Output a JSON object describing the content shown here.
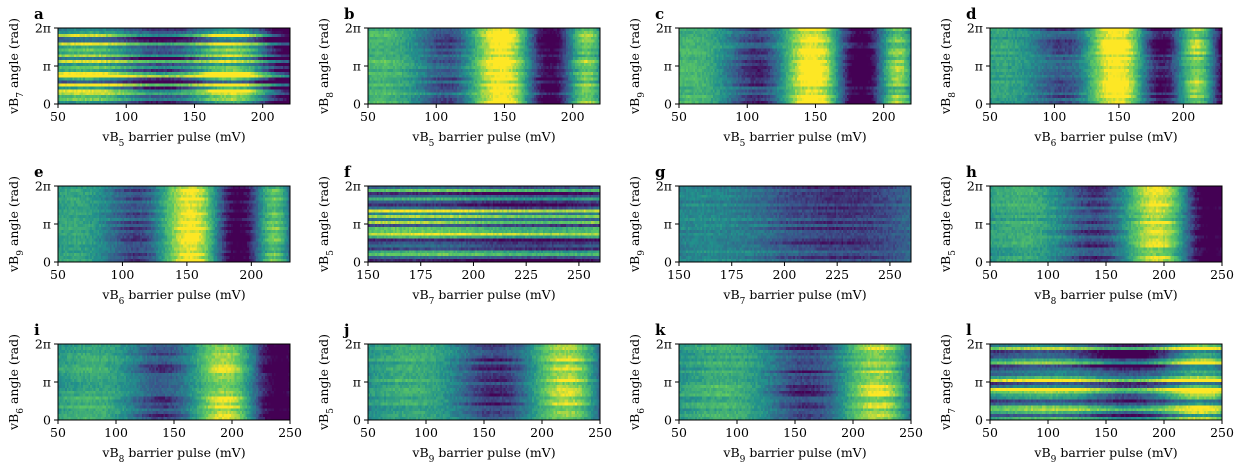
{
  "figure": {
    "layout": "3 rows x 4 columns of heatmap panels"
  },
  "colors": {
    "colormap": [
      "#440154",
      "#3b528b",
      "#21918c",
      "#5ec962",
      "#fde725"
    ],
    "axis": "#000000"
  },
  "chart_data": [
    {
      "id": "a",
      "type": "heatmap",
      "title": "a",
      "xlabel_pre": "vB",
      "xlabel_sub": "5",
      "xlabel_post": " barrier pulse (mV)",
      "ylabel_pre": "vB",
      "ylabel_sub": "7",
      "ylabel_post": " angle (rad)",
      "xlim": [
        50,
        220
      ],
      "xticks": [
        50,
        100,
        150,
        200
      ],
      "xtick_labels": [
        "50",
        "100",
        "150",
        "200"
      ],
      "ylim": [
        0,
        6.2832
      ],
      "yticks": [
        0,
        3.1416,
        6.2832
      ],
      "ytick_labels": [
        "0",
        "π",
        "2π"
      ],
      "pattern": {
        "f0": 0.0035,
        "alpha": 1.8,
        "x0": 105,
        "sigma": 45,
        "bg": 0.3,
        "contrast": 0.4,
        "row_contrast": 0.45,
        "rows": 26,
        "cols": 130,
        "seed": 11
      }
    },
    {
      "id": "b",
      "type": "heatmap",
      "title": "b",
      "xlabel_pre": "vB",
      "xlabel_sub": "5",
      "xlabel_post": " barrier pulse (mV)",
      "ylabel_pre": "vB",
      "ylabel_sub": "8",
      "ylabel_post": " angle (rad)",
      "xlim": [
        50,
        220
      ],
      "xticks": [
        50,
        100,
        150,
        200
      ],
      "xtick_labels": [
        "50",
        "100",
        "150",
        "200"
      ],
      "ylim": [
        0,
        6.2832
      ],
      "yticks": [
        0,
        3.1416,
        6.2832
      ],
      "ytick_labels": [
        "0",
        "π",
        "2π"
      ],
      "pattern": {
        "f0": 0.0045,
        "alpha": 2.0,
        "x0": 110,
        "sigma": 55,
        "bg": 0.25,
        "contrast": 0.45,
        "row_contrast": 0.06,
        "rows": 26,
        "cols": 130,
        "seed": 23
      }
    },
    {
      "id": "c",
      "type": "heatmap",
      "title": "c",
      "xlabel_pre": "vB",
      "xlabel_sub": "5",
      "xlabel_post": " barrier pulse (mV)",
      "ylabel_pre": "vB",
      "ylabel_sub": "9",
      "ylabel_post": " angle (rad)",
      "xlim": [
        50,
        220
      ],
      "xticks": [
        50,
        100,
        150,
        200
      ],
      "xtick_labels": [
        "50",
        "100",
        "150",
        "200"
      ],
      "ylim": [
        0,
        6.2832
      ],
      "yticks": [
        0,
        3.1416,
        6.2832
      ],
      "ytick_labels": [
        "0",
        "π",
        "2π"
      ],
      "pattern": {
        "f0": 0.0045,
        "alpha": 2.0,
        "x0": 108,
        "sigma": 55,
        "bg": 0.22,
        "contrast": 0.48,
        "row_contrast": 0.03,
        "rows": 26,
        "cols": 130,
        "seed": 37
      }
    },
    {
      "id": "d",
      "type": "heatmap",
      "title": "d",
      "xlabel_pre": "vB",
      "xlabel_sub": "6",
      "xlabel_post": " barrier pulse (mV)",
      "ylabel_pre": "vB",
      "ylabel_sub": "8",
      "ylabel_post": " angle (rad)",
      "xlim": [
        50,
        230
      ],
      "xticks": [
        50,
        100,
        150,
        200
      ],
      "xtick_labels": [
        "50",
        "100",
        "150",
        "200"
      ],
      "ylim": [
        0,
        6.2832
      ],
      "yticks": [
        0,
        3.1416,
        6.2832
      ],
      "ytick_labels": [
        "0",
        "π",
        "2π"
      ],
      "pattern": {
        "f0": 0.0045,
        "alpha": 2.0,
        "x0": 125,
        "sigma": 60,
        "bg": 0.2,
        "contrast": 0.45,
        "row_contrast": 0.04,
        "rows": 26,
        "cols": 130,
        "seed": 41
      }
    },
    {
      "id": "e",
      "type": "heatmap",
      "title": "e",
      "xlabel_pre": "vB",
      "xlabel_sub": "6",
      "xlabel_post": " barrier pulse (mV)",
      "ylabel_pre": "vB",
      "ylabel_sub": "9",
      "ylabel_post": " angle (rad)",
      "xlim": [
        50,
        230
      ],
      "xticks": [
        50,
        100,
        150,
        200
      ],
      "xtick_labels": [
        "50",
        "100",
        "150",
        "200"
      ],
      "ylim": [
        0,
        6.2832
      ],
      "yticks": [
        0,
        3.1416,
        6.2832
      ],
      "ytick_labels": [
        "0",
        "π",
        "2π"
      ],
      "pattern": {
        "f0": 0.0042,
        "alpha": 2.0,
        "x0": 118,
        "sigma": 55,
        "bg": 0.2,
        "contrast": 0.48,
        "row_contrast": 0.03,
        "rows": 26,
        "cols": 130,
        "seed": 53
      }
    },
    {
      "id": "f",
      "type": "heatmap",
      "title": "f",
      "xlabel_pre": "vB",
      "xlabel_sub": "7",
      "xlabel_post": " barrier pulse (mV)",
      "ylabel_pre": "vB",
      "ylabel_sub": "5",
      "ylabel_post": " angle (rad)",
      "xlim": [
        150,
        260
      ],
      "xticks": [
        150,
        175,
        200,
        225,
        250
      ],
      "xtick_labels": [
        "150",
        "175",
        "200",
        "225",
        "250"
      ],
      "ylim": [
        0,
        6.2832
      ],
      "yticks": [
        0,
        3.1416,
        6.2832
      ],
      "ytick_labels": [
        "0",
        "π",
        "2π"
      ],
      "pattern": {
        "f0": 0.0011,
        "alpha": 2.0,
        "x0": 205,
        "sigma": 40,
        "bg": 0.35,
        "contrast": 0.35,
        "row_contrast": 0.45,
        "rows": 26,
        "cols": 130,
        "seed": 67
      }
    },
    {
      "id": "g",
      "type": "heatmap",
      "title": "g",
      "xlabel_pre": "vB",
      "xlabel_sub": "7",
      "xlabel_post": " barrier pulse (mV)",
      "ylabel_pre": "vB",
      "ylabel_sub": "9",
      "ylabel_post": " angle (rad)",
      "xlim": [
        150,
        260
      ],
      "xticks": [
        150,
        175,
        200,
        225,
        250
      ],
      "xtick_labels": [
        "150",
        "175",
        "200",
        "225",
        "250"
      ],
      "ylim": [
        0,
        6.2832
      ],
      "yticks": [
        0,
        3.1416,
        6.2832
      ],
      "ytick_labels": [
        "0",
        "π",
        "2π"
      ],
      "pattern": {
        "f0": 0.0011,
        "alpha": 2.0,
        "x0": 198,
        "sigma": 40,
        "bg": 0.22,
        "contrast": 0.45,
        "row_contrast": 0.05,
        "rows": 26,
        "cols": 130,
        "seed": 71
      }
    },
    {
      "id": "h",
      "type": "heatmap",
      "title": "h",
      "xlabel_pre": "vB",
      "xlabel_sub": "8",
      "xlabel_post": " barrier pulse (mV)",
      "ylabel_pre": "vB",
      "ylabel_sub": "5",
      "ylabel_post": " angle (rad)",
      "xlim": [
        50,
        250
      ],
      "xticks": [
        50,
        100,
        150,
        200,
        250
      ],
      "xtick_labels": [
        "50",
        "100",
        "150",
        "200",
        "250"
      ],
      "ylim": [
        0,
        6.2832
      ],
      "yticks": [
        0,
        3.1416,
        6.2832
      ],
      "ytick_labels": [
        "0",
        "π",
        "2π"
      ],
      "pattern": {
        "f0": 0.0026,
        "alpha": 2.0,
        "x0": 138,
        "sigma": 60,
        "bg": 0.2,
        "contrast": 0.45,
        "row_contrast": 0.04,
        "rows": 26,
        "cols": 130,
        "seed": 83
      }
    },
    {
      "id": "i",
      "type": "heatmap",
      "title": "i",
      "xlabel_pre": "vB",
      "xlabel_sub": "8",
      "xlabel_post": " barrier pulse (mV)",
      "ylabel_pre": "vB",
      "ylabel_sub": "6",
      "ylabel_post": " angle (rad)",
      "xlim": [
        50,
        250
      ],
      "xticks": [
        50,
        100,
        150,
        200,
        250
      ],
      "xtick_labels": [
        "50",
        "100",
        "150",
        "200",
        "250"
      ],
      "ylim": [
        0,
        6.2832
      ],
      "yticks": [
        0,
        3.1416,
        6.2832
      ],
      "ytick_labels": [
        "0",
        "π",
        "2π"
      ],
      "pattern": {
        "f0": 0.0026,
        "alpha": 2.0,
        "x0": 135,
        "sigma": 60,
        "bg": 0.2,
        "contrast": 0.45,
        "row_contrast": 0.04,
        "rows": 26,
        "cols": 130,
        "seed": 97
      }
    },
    {
      "id": "j",
      "type": "heatmap",
      "title": "j",
      "xlabel_pre": "vB",
      "xlabel_sub": "9",
      "xlabel_post": " barrier pulse (mV)",
      "ylabel_pre": "vB",
      "ylabel_sub": "5",
      "ylabel_post": " angle (rad)",
      "xlim": [
        50,
        250
      ],
      "xticks": [
        50,
        100,
        150,
        200,
        250
      ],
      "xtick_labels": [
        "50",
        "100",
        "150",
        "200",
        "250"
      ],
      "ylim": [
        0,
        6.2832
      ],
      "yticks": [
        0,
        3.1416,
        6.2832
      ],
      "ytick_labels": [
        "0",
        "π",
        "2π"
      ],
      "pattern": {
        "f0": 0.002,
        "alpha": 2.0,
        "x0": 152,
        "sigma": 65,
        "bg": 0.18,
        "contrast": 0.48,
        "row_contrast": 0.03,
        "rows": 26,
        "cols": 130,
        "seed": 101
      }
    },
    {
      "id": "k",
      "type": "heatmap",
      "title": "k",
      "xlabel_pre": "vB",
      "xlabel_sub": "9",
      "xlabel_post": " barrier pulse (mV)",
      "ylabel_pre": "vB",
      "ylabel_sub": "6",
      "ylabel_post": " angle (rad)",
      "xlim": [
        50,
        250
      ],
      "xticks": [
        50,
        100,
        150,
        200,
        250
      ],
      "xtick_labels": [
        "50",
        "100",
        "150",
        "200",
        "250"
      ],
      "ylim": [
        0,
        6.2832
      ],
      "yticks": [
        0,
        3.1416,
        6.2832
      ],
      "ytick_labels": [
        "0",
        "π",
        "2π"
      ],
      "pattern": {
        "f0": 0.002,
        "alpha": 2.0,
        "x0": 150,
        "sigma": 65,
        "bg": 0.18,
        "contrast": 0.48,
        "row_contrast": 0.03,
        "rows": 26,
        "cols": 130,
        "seed": 113
      }
    },
    {
      "id": "l",
      "type": "heatmap",
      "title": "l",
      "xlabel_pre": "vB",
      "xlabel_sub": "9",
      "xlabel_post": " barrier pulse (mV)",
      "ylabel_pre": "vB",
      "ylabel_sub": "7",
      "ylabel_post": " angle (rad)",
      "xlim": [
        50,
        250
      ],
      "xticks": [
        50,
        100,
        150,
        200,
        250
      ],
      "xtick_labels": [
        "50",
        "100",
        "150",
        "200",
        "250"
      ],
      "ylim": [
        0,
        6.2832
      ],
      "yticks": [
        0,
        3.1416,
        6.2832
      ],
      "ytick_labels": [
        "0",
        "π",
        "2π"
      ],
      "pattern": {
        "f0": 0.0018,
        "alpha": 2.0,
        "x0": 160,
        "sigma": 55,
        "bg": 0.3,
        "contrast": 0.4,
        "row_contrast": 0.45,
        "rows": 26,
        "cols": 130,
        "seed": 127
      }
    }
  ]
}
